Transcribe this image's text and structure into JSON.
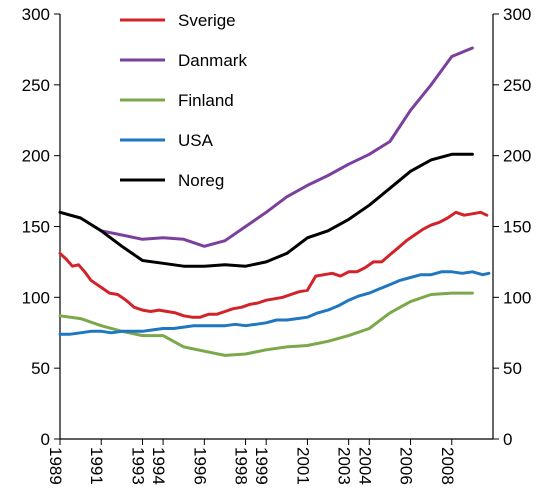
{
  "chart_data": {
    "type": "line",
    "title": "",
    "xlabel": "",
    "ylabel": "",
    "ylim": [
      0,
      300
    ],
    "yticks": [
      0,
      50,
      100,
      150,
      200,
      250,
      300
    ],
    "xlim": [
      1989,
      2010
    ],
    "xticks": [
      1989,
      1991,
      1993,
      1994,
      1996,
      1998,
      1999,
      2001,
      2003,
      2004,
      2006,
      2008
    ],
    "xtick_labels": [
      "1989",
      "1991",
      "1993",
      "1994",
      "1996",
      "1998",
      "1999",
      "2001",
      "2003",
      "2004",
      "2006",
      "2008"
    ],
    "grid": false,
    "legend_position": "top-left",
    "series": [
      {
        "name": "Sverige",
        "color": "#d2232a",
        "x": [
          1989,
          1989.3,
          1989.6,
          1989.9,
          1990.2,
          1990.5,
          1991,
          1991.4,
          1991.8,
          1992.2,
          1992.6,
          1993,
          1993.4,
          1993.8,
          1994.2,
          1994.6,
          1995,
          1995.4,
          1995.8,
          1996.2,
          1996.6,
          1997,
          1997.4,
          1997.8,
          1998.2,
          1998.6,
          1999,
          1999.4,
          1999.8,
          2000.2,
          2000.6,
          2001,
          2001.4,
          2001.8,
          2002.2,
          2002.6,
          2003,
          2003.4,
          2003.8,
          2004.2,
          2004.6,
          2005,
          2005.4,
          2005.8,
          2006.2,
          2006.6,
          2007,
          2007.4,
          2007.8,
          2008.2,
          2008.6,
          2009,
          2009.4,
          2009.7
        ],
        "values": [
          131,
          127,
          122,
          123,
          118,
          112,
          107,
          103,
          102,
          98,
          93,
          91,
          90,
          91,
          90,
          89,
          87,
          86,
          86,
          88,
          88,
          90,
          92,
          93,
          95,
          96,
          98,
          99,
          100,
          102,
          104,
          105,
          115,
          116,
          117,
          115,
          118,
          118,
          121,
          125,
          125,
          130,
          135,
          140,
          144,
          148,
          151,
          153,
          156,
          160,
          158,
          159,
          160,
          158
        ]
      },
      {
        "name": "Danmark",
        "color": "#7b3f9e",
        "x": [
          1991,
          1992,
          1993,
          1994,
          1995,
          1996,
          1997,
          1998,
          1999,
          2000,
          2001,
          2002,
          2003,
          2004,
          2005,
          2006,
          2007,
          2008,
          2009
        ],
        "values": [
          147,
          144,
          141,
          142,
          141,
          136,
          140,
          150,
          160,
          171,
          179,
          186,
          194,
          201,
          210,
          232,
          250,
          270,
          276
        ]
      },
      {
        "name": "Finland",
        "color": "#7aa84a",
        "x": [
          1989,
          1990,
          1991,
          1992,
          1993,
          1994,
          1995,
          1996,
          1997,
          1998,
          1999,
          2000,
          2001,
          2002,
          2003,
          2004,
          2005,
          2006,
          2007,
          2008,
          2009
        ],
        "values": [
          87,
          85,
          80,
          76,
          73,
          73,
          65,
          62,
          59,
          60,
          63,
          65,
          66,
          69,
          73,
          78,
          89,
          97,
          102,
          103,
          103
        ]
      },
      {
        "name": "USA",
        "color": "#1f77c0",
        "x": [
          1989,
          1989.5,
          1990,
          1990.5,
          1991,
          1991.5,
          1992,
          1992.5,
          1993,
          1993.5,
          1994,
          1994.5,
          1995,
          1995.5,
          1996,
          1996.5,
          1997,
          1997.5,
          1998,
          1998.5,
          1999,
          1999.5,
          2000,
          2000.5,
          2001,
          2001.5,
          2002,
          2002.5,
          2003,
          2003.5,
          2004,
          2004.5,
          2005,
          2005.5,
          2006,
          2006.5,
          2007,
          2007.5,
          2008,
          2008.5,
          2009,
          2009.5,
          2009.8
        ],
        "values": [
          74,
          74,
          75,
          76,
          76,
          75,
          76,
          76,
          76,
          77,
          78,
          78,
          79,
          80,
          80,
          80,
          80,
          81,
          80,
          81,
          82,
          84,
          84,
          85,
          86,
          89,
          91,
          94,
          98,
          101,
          103,
          106,
          109,
          112,
          114,
          116,
          116,
          118,
          118,
          117,
          118,
          116,
          117
        ]
      },
      {
        "name": "Noreg",
        "color": "#000000",
        "x": [
          1989,
          1990,
          1991,
          1992,
          1993,
          1994,
          1995,
          1996,
          1997,
          1998,
          1999,
          2000,
          2001,
          2002,
          2003,
          2004,
          2005,
          2006,
          2007,
          2008,
          2009
        ],
        "values": [
          160,
          156,
          147,
          136,
          126,
          124,
          122,
          122,
          123,
          122,
          125,
          131,
          142,
          147,
          155,
          165,
          177,
          189,
          197,
          201,
          201
        ]
      }
    ]
  }
}
